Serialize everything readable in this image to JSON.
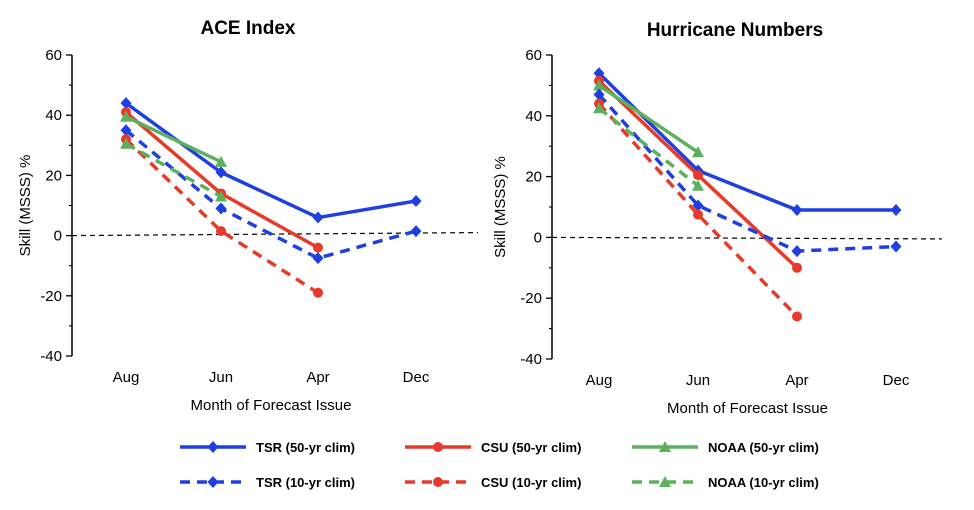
{
  "chart_data": [
    {
      "type": "line",
      "title": "ACE Index",
      "xlabel": "Month of Forecast Issue",
      "ylabel": "Skill (MSSS) %",
      "categories": [
        "Aug",
        "Jun",
        "Apr",
        "Dec"
      ],
      "ylim": [
        -40,
        60
      ],
      "yticks": [
        "60",
        "40",
        "20",
        "0",
        "-20",
        "-40"
      ],
      "grid": false,
      "reference_line": {
        "y_start": 0,
        "y_end": 1,
        "style": "dashed"
      },
      "series": [
        {
          "name": "TSR (50-yr clim)",
          "values": [
            44,
            21,
            6,
            11.5
          ],
          "color": "#1f3fe0",
          "dash": false,
          "marker": "diamond"
        },
        {
          "name": "CSU (50-yr clim)",
          "values": [
            41,
            14,
            -4,
            null
          ],
          "color": "#e63a2a",
          "dash": false,
          "marker": "circle"
        },
        {
          "name": "NOAA (50-yr clim)",
          "values": [
            39.5,
            24.5,
            null,
            null
          ],
          "color": "#5db15c",
          "dash": false,
          "marker": "triangle"
        },
        {
          "name": "TSR (10-yr clim)",
          "values": [
            35,
            9,
            -7.5,
            1.5
          ],
          "color": "#1f3fe0",
          "dash": true,
          "marker": "diamond"
        },
        {
          "name": "CSU (10-yr clim)",
          "values": [
            32,
            1.5,
            -19,
            null
          ],
          "color": "#e63a2a",
          "dash": true,
          "marker": "circle"
        },
        {
          "name": "NOAA (10-yr clim)",
          "values": [
            30.5,
            13,
            null,
            null
          ],
          "color": "#5db15c",
          "dash": true,
          "marker": "triangle"
        }
      ]
    },
    {
      "type": "line",
      "title": "Hurricane Numbers",
      "xlabel": "Month of Forecast Issue",
      "ylabel": "Skill (MSSS) %",
      "categories": [
        "Aug",
        "Jun",
        "Apr",
        "Dec"
      ],
      "ylim": [
        -40,
        60
      ],
      "yticks": [
        "60",
        "40",
        "20",
        "0",
        "-20",
        "-40"
      ],
      "grid": false,
      "reference_line": {
        "y_start": 0,
        "y_end": -0.5,
        "style": "dashed"
      },
      "series": [
        {
          "name": "TSR (50-yr clim)",
          "values": [
            54,
            22,
            9,
            9
          ],
          "color": "#1f3fe0",
          "dash": false,
          "marker": "diamond"
        },
        {
          "name": "CSU (50-yr clim)",
          "values": [
            51.5,
            20.5,
            -10,
            null
          ],
          "color": "#e63a2a",
          "dash": false,
          "marker": "circle"
        },
        {
          "name": "NOAA (50-yr clim)",
          "values": [
            50,
            28,
            null,
            null
          ],
          "color": "#5db15c",
          "dash": false,
          "marker": "triangle"
        },
        {
          "name": "TSR (10-yr clim)",
          "values": [
            47,
            10.5,
            -4.5,
            -3
          ],
          "color": "#1f3fe0",
          "dash": true,
          "marker": "diamond"
        },
        {
          "name": "CSU (10-yr clim)",
          "values": [
            44,
            7.5,
            -26,
            null
          ],
          "color": "#e63a2a",
          "dash": true,
          "marker": "circle"
        },
        {
          "name": "NOAA (10-yr clim)",
          "values": [
            42.5,
            17,
            null,
            null
          ],
          "color": "#5db15c",
          "dash": true,
          "marker": "triangle"
        }
      ]
    }
  ],
  "legend": {
    "placement": "bottom",
    "items": [
      {
        "label": "TSR (50-yr clim)",
        "color": "#1f3fe0",
        "dash": false,
        "marker": "diamond"
      },
      {
        "label": "CSU (50-yr clim)",
        "color": "#e63a2a",
        "dash": false,
        "marker": "circle"
      },
      {
        "label": "NOAA (50-yr clim)",
        "color": "#5db15c",
        "dash": false,
        "marker": "triangle"
      },
      {
        "label": "TSR (10-yr clim)",
        "color": "#1f3fe0",
        "dash": true,
        "marker": "diamond"
      },
      {
        "label": "CSU (10-yr clim)",
        "color": "#e63a2a",
        "dash": true,
        "marker": "circle"
      },
      {
        "label": "NOAA (10-yr clim)",
        "color": "#5db15c",
        "dash": true,
        "marker": "triangle"
      }
    ]
  }
}
